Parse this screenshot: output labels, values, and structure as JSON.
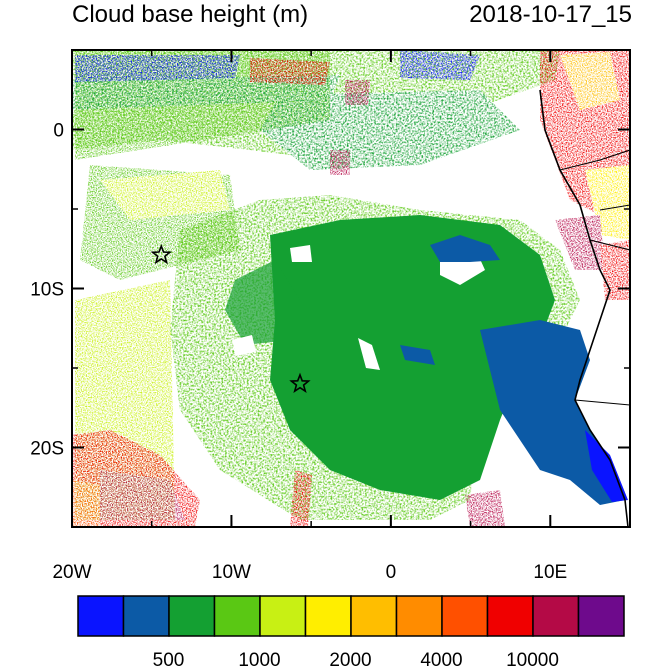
{
  "title_left": "Cloud base height (m)",
  "title_right": "2018-10-17_15",
  "map": {
    "lon_range": [
      -20,
      15
    ],
    "lat_range": [
      -25,
      5
    ],
    "lon_ticks": [
      {
        "value": -20,
        "label": "20W"
      },
      {
        "value": -10,
        "label": "10W"
      },
      {
        "value": 0,
        "label": "0"
      },
      {
        "value": 10,
        "label": "10E"
      }
    ],
    "lat_ticks": [
      {
        "value": 0,
        "label": "0"
      },
      {
        "value": -10,
        "label": "10S"
      },
      {
        "value": -20,
        "label": "20S"
      }
    ],
    "markers": [
      {
        "name": "star",
        "lon": -14.4,
        "lat": -7.9
      },
      {
        "name": "star",
        "lon": -5.7,
        "lat": -16.0
      }
    ]
  },
  "colorbar": {
    "colors": [
      "#0a14ff",
      "#0c5aa6",
      "#14a032",
      "#5ac814",
      "#c8f014",
      "#ffee00",
      "#ffbe00",
      "#ff8c00",
      "#ff5000",
      "#f00000",
      "#b40a46",
      "#6e0a8c"
    ],
    "labels": [
      {
        "boundary": 1,
        "text": "500"
      },
      {
        "boundary": 3,
        "text": "1000"
      },
      {
        "boundary": 5,
        "text": "2000"
      },
      {
        "boundary": 7,
        "text": "4000"
      },
      {
        "boundary": 9,
        "text": "10000"
      }
    ]
  }
}
